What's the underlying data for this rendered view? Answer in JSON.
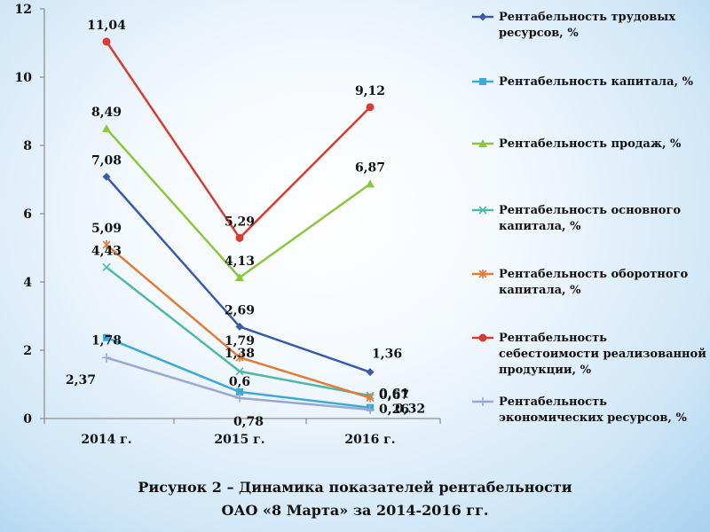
{
  "caption": {
    "line1": "Рисунок 2 – Динамика показателей рентабельности",
    "line2": "ОАО «8 Марта» за 2014-2016 гг."
  },
  "chart_data": {
    "type": "line",
    "categories": [
      "2014 г.",
      "2015 г.",
      "2016 г."
    ],
    "ylim": [
      0,
      12
    ],
    "yticks": [
      "0",
      "2",
      "4",
      "6",
      "8",
      "10",
      "12"
    ],
    "grid": false,
    "legend_position": "right",
    "series": [
      {
        "name": "Рентабельность трудовых ресурсов, %",
        "legend_lines": [
          "Рентабельность трудовых",
          "ресурсов, %"
        ],
        "color": "#3a5ba8",
        "marker": "diamond",
        "values": [
          7.08,
          2.69,
          1.36
        ],
        "labels": [
          "7,08",
          "2,69",
          "1,36"
        ]
      },
      {
        "name": "Рентабельность капитала, %",
        "legend_lines": [
          "Рентабельность капитала, %"
        ],
        "color": "#3fa9d6",
        "marker": "square",
        "values": [
          2.37,
          0.78,
          0.32
        ],
        "labels": [
          "2,37",
          "0,78",
          "0,32"
        ]
      },
      {
        "name": "Рентабельность продаж, %",
        "legend_lines": [
          "Рентабельность       продаж, %"
        ],
        "color": "#8cc63f",
        "marker": "triangle",
        "values": [
          8.49,
          4.13,
          6.87
        ],
        "labels": [
          "8,49",
          "4,13",
          "6,87"
        ]
      },
      {
        "name": "Рентабельность основного капитала, %",
        "legend_lines": [
          "Рентабельность основного",
          "капитала, %"
        ],
        "color": "#4fb8a8",
        "marker": "x",
        "values": [
          4.43,
          1.38,
          0.67
        ],
        "labels": [
          "4,43",
          "1,38",
          "0,67"
        ]
      },
      {
        "name": "Рентабельность оборотного капитала, %",
        "legend_lines": [
          "Рентабельность оборотного",
          "капитала, %"
        ],
        "color": "#e07b39",
        "marker": "star",
        "values": [
          5.09,
          1.79,
          0.61
        ],
        "labels": [
          "5,09",
          "1,79",
          "0,61"
        ]
      },
      {
        "name": "Рентабельность себестоимости реализованной продукции, %",
        "legend_lines": [
          "Рентабельность",
          "себестоимости реализованной",
          "продукции, %"
        ],
        "color": "#d63c2f",
        "marker": "circle",
        "values": [
          11.04,
          5.29,
          9.12
        ],
        "labels": [
          "11,04",
          "5,29",
          "9,12"
        ]
      },
      {
        "name": "Рентабельность экономических ресурсов, %",
        "legend_lines": [
          "Рентабельность",
          "экономических ресурсов, %"
        ],
        "color": "#98a8d4",
        "marker": "plus",
        "values": [
          1.78,
          0.6,
          0.26
        ],
        "labels": [
          "1,78",
          "0,6",
          "0,26"
        ]
      }
    ]
  }
}
